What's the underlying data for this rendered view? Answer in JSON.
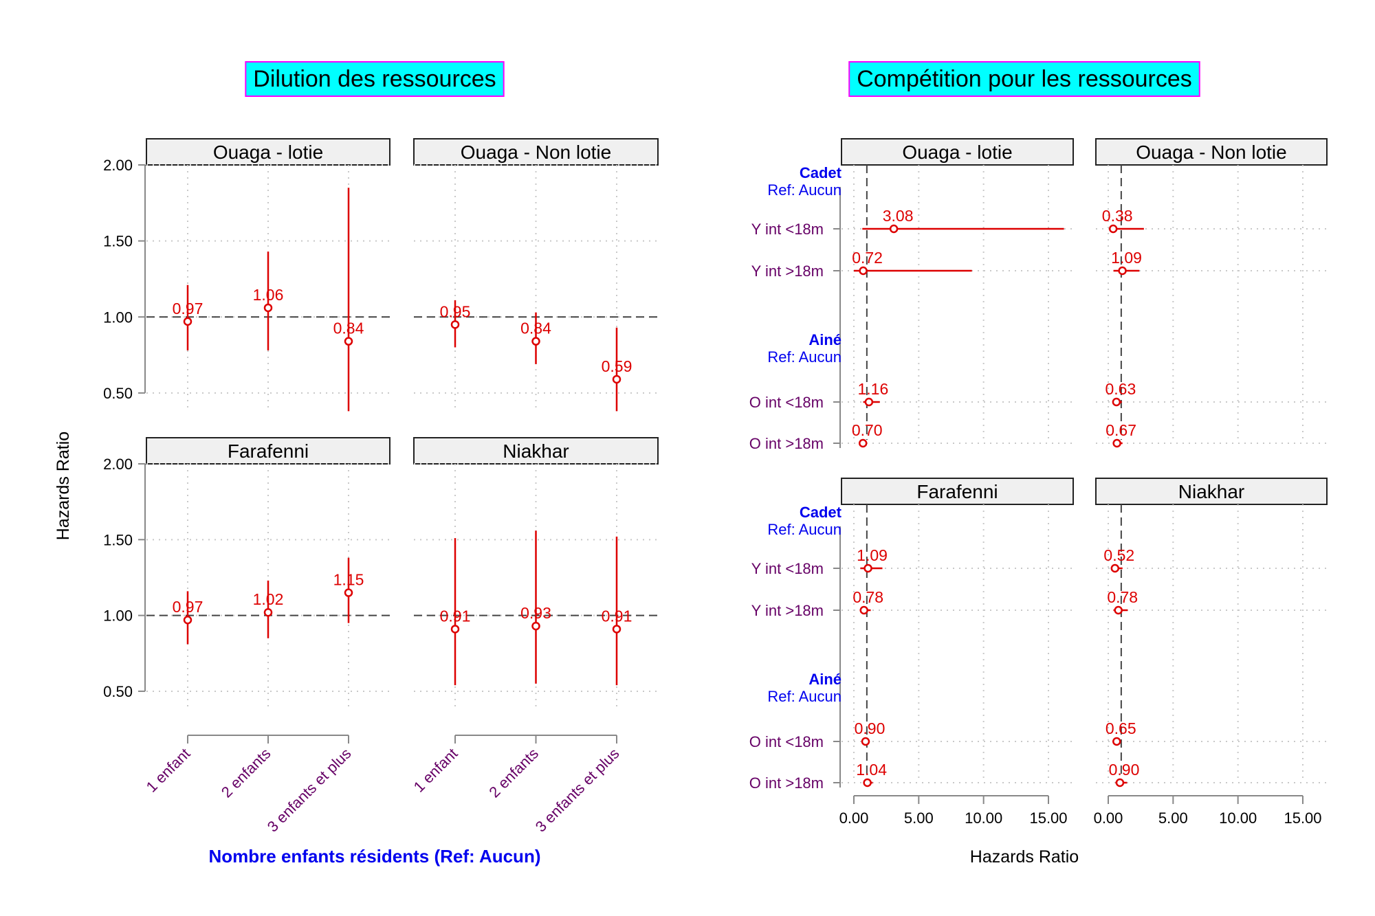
{
  "chart_data": [
    {
      "type": "errorbar",
      "title": "Dilution des ressources",
      "ylabel": "Hazards Ratio",
      "xlabel": "Nombre enfants résidents (Ref: Aucun)",
      "ylim": [
        0.4,
        2.0
      ],
      "yticks": [
        "2.00",
        "1.50",
        "1.00",
        "0.50"
      ],
      "reference_line": 1.0,
      "categories": [
        "1 enfant",
        "2 enfants",
        "3 enfants et plus"
      ],
      "panels": [
        {
          "name": "Ouaga - lotie",
          "points": [
            {
              "category": "1 enfant",
              "value": 0.97,
              "label": "0.97",
              "lower": 0.78,
              "upper": 1.21
            },
            {
              "category": "2 enfants",
              "value": 1.06,
              "label": "1.06",
              "lower": 0.78,
              "upper": 1.43
            },
            {
              "category": "3 enfants et plus",
              "value": 0.84,
              "label": "0.84",
              "lower": 0.38,
              "upper": 1.85
            }
          ]
        },
        {
          "name": "Ouaga - Non lotie",
          "points": [
            {
              "category": "1 enfant",
              "value": 0.95,
              "label": "0.95",
              "lower": 0.8,
              "upper": 1.11
            },
            {
              "category": "2 enfants",
              "value": 0.84,
              "label": "0.84",
              "lower": 0.69,
              "upper": 1.03
            },
            {
              "category": "3 enfants et plus",
              "value": 0.59,
              "label": "0.59",
              "lower": 0.38,
              "upper": 0.93
            }
          ]
        },
        {
          "name": "Farafenni",
          "points": [
            {
              "category": "1 enfant",
              "value": 0.97,
              "label": "0.97",
              "lower": 0.81,
              "upper": 1.16
            },
            {
              "category": "2 enfants",
              "value": 1.02,
              "label": "1.02",
              "lower": 0.85,
              "upper": 1.23
            },
            {
              "category": "3 enfants et plus",
              "value": 1.15,
              "label": "1.15",
              "lower": 0.95,
              "upper": 1.38
            }
          ]
        },
        {
          "name": "Niakhar",
          "points": [
            {
              "category": "1 enfant",
              "value": 0.91,
              "label": "0.91",
              "lower": 0.54,
              "upper": 1.51
            },
            {
              "category": "2 enfants",
              "value": 0.93,
              "label": "0.93",
              "lower": 0.55,
              "upper": 1.56
            },
            {
              "category": "3 enfants et plus",
              "value": 0.91,
              "label": "0.91",
              "lower": 0.54,
              "upper": 1.52
            }
          ]
        }
      ]
    },
    {
      "type": "forest",
      "title": "Compétition pour les ressources",
      "xlabel": "Hazards Ratio",
      "xlim": [
        -0.6,
        15.0
      ],
      "xticks": [
        "0.00",
        "5.00",
        "10.00",
        "15.00"
      ],
      "reference_line": 1.0,
      "groups": [
        {
          "name": "Cadet",
          "ref": "Ref: Aucun",
          "rows": [
            "Y int <18m",
            "Y int >18m"
          ]
        },
        {
          "name": "Ainé",
          "ref": "Ref: Aucun",
          "rows": [
            "O int <18m",
            "O int >18m"
          ]
        }
      ],
      "panels": [
        {
          "name": "Ouaga - lotie",
          "points": [
            {
              "row": "Y int <18m",
              "value": 3.08,
              "label": "3.08",
              "lower": 0.65,
              "upper": 16.2
            },
            {
              "row": "Y int >18m",
              "value": 0.72,
              "label": "0.72",
              "lower": 0.0,
              "upper": 9.1
            },
            {
              "row": "O int <18m",
              "value": 1.16,
              "label": "1.16",
              "lower": 0.72,
              "upper": 2.0
            },
            {
              "row": "O int >18m",
              "value": 0.7,
              "label": "0.70",
              "lower": 0.5,
              "upper": 0.95
            }
          ]
        },
        {
          "name": "Ouaga - Non lotie",
          "points": [
            {
              "row": "Y int <18m",
              "value": 0.38,
              "label": "0.38",
              "lower": 0.1,
              "upper": 2.75
            },
            {
              "row": "Y int >18m",
              "value": 1.09,
              "label": "1.09",
              "lower": 0.4,
              "upper": 2.4
            },
            {
              "row": "O int <18m",
              "value": 0.63,
              "label": "0.63",
              "lower": 0.38,
              "upper": 1.05
            },
            {
              "row": "O int >18m",
              "value": 0.67,
              "label": "0.67",
              "lower": 0.4,
              "upper": 1.1
            }
          ]
        },
        {
          "name": "Farafenni",
          "points": [
            {
              "row": "Y int <18m",
              "value": 1.09,
              "label": "1.09",
              "lower": 0.5,
              "upper": 2.2
            },
            {
              "row": "Y int >18m",
              "value": 0.78,
              "label": "0.78",
              "lower": 0.45,
              "upper": 1.3
            },
            {
              "row": "O int <18m",
              "value": 0.9,
              "label": "0.90",
              "lower": 0.65,
              "upper": 1.2
            },
            {
              "row": "O int >18m",
              "value": 1.04,
              "label": "1.04",
              "lower": 0.75,
              "upper": 1.45
            }
          ]
        },
        {
          "name": "Niakhar",
          "points": [
            {
              "row": "Y int <18m",
              "value": 0.52,
              "label": "0.52",
              "lower": 0.3,
              "upper": 1.1
            },
            {
              "row": "Y int >18m",
              "value": 0.78,
              "label": "0.78",
              "lower": 0.4,
              "upper": 1.5
            },
            {
              "row": "O int <18m",
              "value": 0.65,
              "label": "0.65",
              "lower": 0.45,
              "upper": 0.95
            },
            {
              "row": "O int >18m",
              "value": 0.9,
              "label": "0.90",
              "lower": 0.55,
              "upper": 1.45
            }
          ]
        }
      ]
    }
  ],
  "colors": {
    "title_fill": "#00ffff",
    "title_border": "#ff00ff",
    "strip_fill": "#f0f0f0",
    "points": "#dd0000",
    "axis_text": "#660066",
    "group_text": "#0000ee",
    "xlabel_left": "#0000ee",
    "grid": "#c8c8c8"
  }
}
